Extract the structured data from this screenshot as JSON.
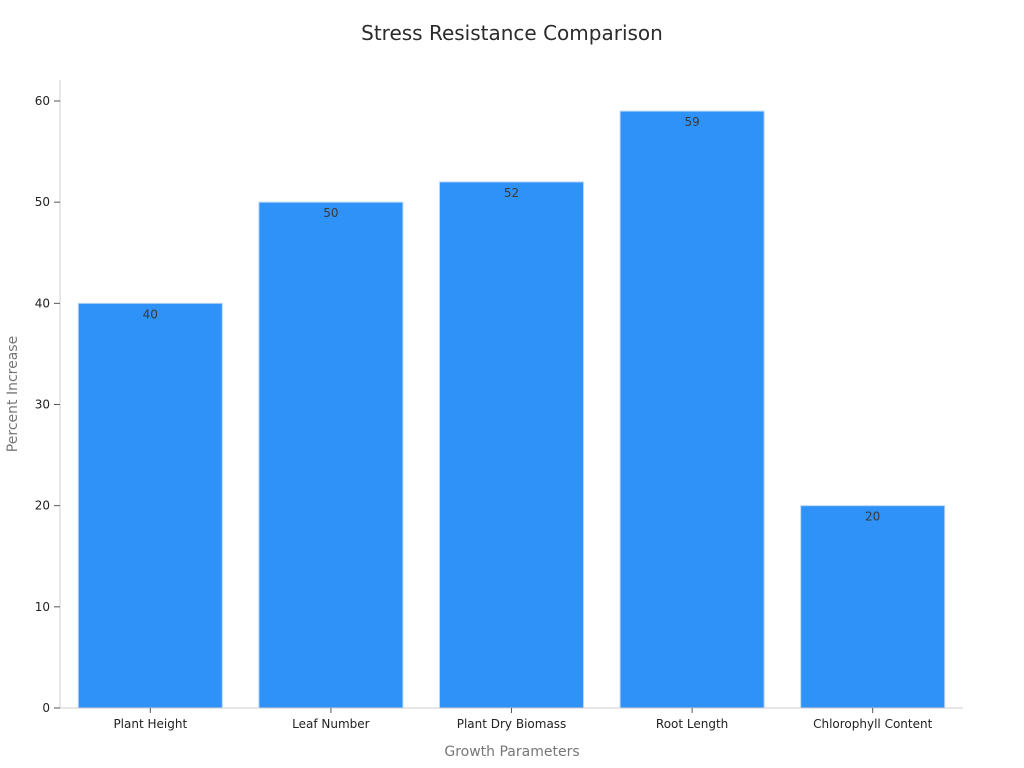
{
  "chart_data": {
    "type": "bar",
    "title": "Stress Resistance Comparison",
    "xlabel": "Growth Parameters",
    "ylabel": "Percent Increase",
    "categories": [
      "Plant Height",
      "Leaf Number",
      "Plant Dry Biomass",
      "Root Length",
      "Chlorophyll Content"
    ],
    "values": [
      40,
      50,
      52,
      59,
      20
    ],
    "data_labels": [
      "40",
      "50",
      "52",
      "59",
      "20"
    ],
    "ylim": [
      0,
      62
    ],
    "yticks": [
      0,
      10,
      20,
      30,
      40,
      50,
      60
    ],
    "ytick_labels": [
      "0",
      "10",
      "20",
      "30",
      "40",
      "50",
      "60"
    ],
    "grid": false,
    "legend": "none",
    "bar_color": "#2f92f8"
  }
}
